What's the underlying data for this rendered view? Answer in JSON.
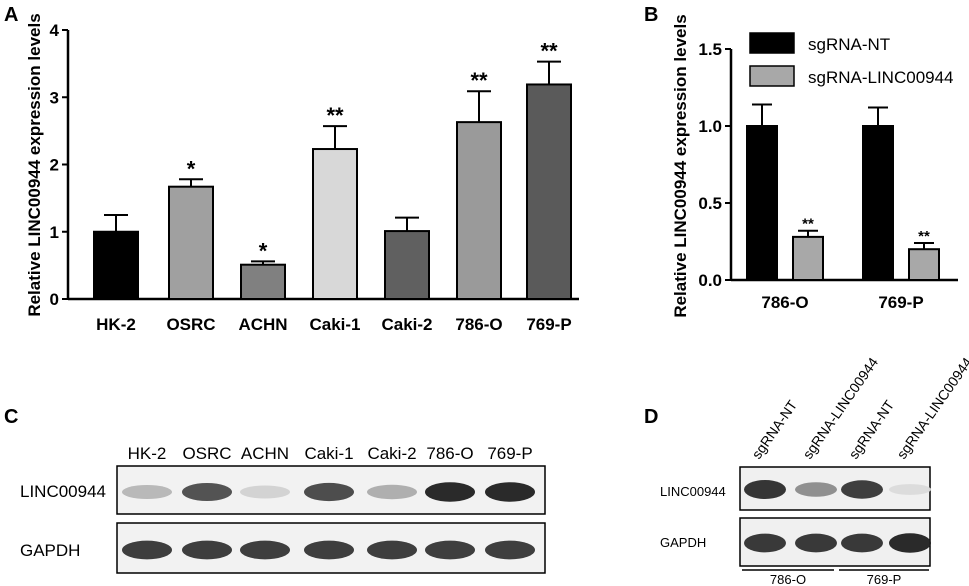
{
  "panels": {
    "A": {
      "letter": "A"
    },
    "B": {
      "letter": "B"
    },
    "C": {
      "letter": "C"
    },
    "D": {
      "letter": "D"
    }
  },
  "chart_data": [
    {
      "type": "bar",
      "panel": "A",
      "ylabel": "Relative LINC00944  expression levels",
      "ylim": [
        0,
        4
      ],
      "yticks": [
        "0",
        "1",
        "2",
        "3",
        "4"
      ],
      "categories": [
        "HK-2",
        "OSRC",
        "ACHN",
        "Caki-1",
        "Caki-2",
        "786-O",
        "769-P"
      ],
      "values": [
        1.0,
        1.67,
        0.51,
        2.23,
        1.01,
        2.63,
        3.19
      ],
      "errors": [
        0.25,
        0.11,
        0.05,
        0.34,
        0.2,
        0.46,
        0.34
      ],
      "significance": [
        "",
        "*",
        "*",
        "**",
        "",
        "**",
        "**"
      ],
      "colors": [
        "#000000",
        "#a0a0a0",
        "#808080",
        "#d8d8d8",
        "#606060",
        "#9a9a9a",
        "#5a5a5a"
      ]
    },
    {
      "type": "bar",
      "panel": "B",
      "ylabel": "Relative LINC00944  expression levels",
      "ylim": [
        0,
        1.5
      ],
      "yticks": [
        "0.0",
        "0.5",
        "1.0",
        "1.5"
      ],
      "categories": [
        "786-O",
        "769-P"
      ],
      "series": [
        {
          "name": "sgRNA-NT",
          "values": [
            1.0,
            1.0
          ],
          "errors": [
            0.14,
            0.12
          ],
          "significance": [
            "",
            ""
          ],
          "color": "#000000"
        },
        {
          "name": "sgRNA-LINC00944",
          "values": [
            0.28,
            0.2
          ],
          "errors": [
            0.04,
            0.04
          ],
          "significance": [
            "**",
            "**"
          ],
          "color": "#a8a8a8"
        }
      ],
      "legend": "top-right"
    }
  ],
  "blot_c": {
    "lanes": [
      "HK-2",
      "OSRC",
      "ACHN",
      "Caki-1",
      "Caki-2",
      "786-O",
      "769-P"
    ],
    "rows": [
      {
        "label": "LINC00944",
        "intensities": [
          0.25,
          0.75,
          0.12,
          0.78,
          0.3,
          0.95,
          0.95
        ]
      },
      {
        "label": "GAPDH",
        "intensities": [
          0.85,
          0.85,
          0.85,
          0.85,
          0.85,
          0.85,
          0.85
        ]
      }
    ]
  },
  "blot_d": {
    "lanes": [
      "sgRNA-NT",
      "sgRNA-LINC00944",
      "sgRNA-NT",
      "sgRNA-LINC00944"
    ],
    "groups": [
      "786-O",
      "769-P"
    ],
    "rows": [
      {
        "label": "LINC00944",
        "intensities": [
          0.9,
          0.45,
          0.85,
          0.08
        ]
      },
      {
        "label": "GAPDH",
        "intensities": [
          0.88,
          0.88,
          0.88,
          0.95
        ]
      }
    ]
  }
}
